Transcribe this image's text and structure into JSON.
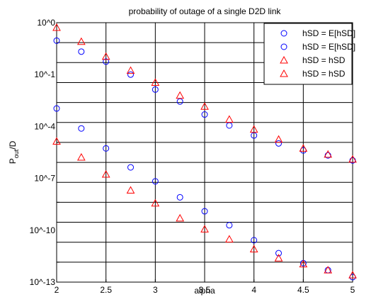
{
  "chart_data": {
    "type": "scatter",
    "title": "probability of outage of a single D2D link",
    "xlabel": "alpha",
    "ylabel_main": "P",
    "ylabel_sub": "out",
    "ylabel_suffix": "/D",
    "xlim": [
      2,
      5
    ],
    "ylim_log10": [
      -13,
      0
    ],
    "y_scale": "log",
    "grid": true,
    "legend_placement": "top-right",
    "x_ticks": [
      2,
      2.5,
      3,
      3.5,
      4,
      4.5,
      5
    ],
    "x_tick_labels": [
      "2",
      "2.5",
      "3",
      "3.5",
      "4",
      "4.5",
      "5"
    ],
    "y_ticks_log10": [
      0,
      -3,
      -6,
      -9,
      -12
    ],
    "y_tick_labels": [
      "10^0",
      "10^-1",
      "10^-4",
      "10^-7",
      "10^-10",
      "10^-13"
    ],
    "y_tick_label_positions_log10": [
      0,
      -2.6,
      -5.2,
      -7.8,
      -10.4,
      -13
    ],
    "x": [
      2,
      2.25,
      2.5,
      2.75,
      3,
      3.25,
      3.5,
      3.75,
      4,
      4.25,
      4.5,
      4.75,
      5
    ],
    "series": [
      {
        "name": "hSD = E[hSD]",
        "marker": "circle",
        "color": "#0000ff",
        "y_log10": [
          -0.9,
          -1.45,
          -1.95,
          -2.6,
          -3.35,
          -3.95,
          -4.6,
          -5.15,
          -5.65,
          -6.05,
          -6.4,
          -6.65,
          -6.9
        ]
      },
      {
        "name": "hSD = E[hSD]",
        "marker": "circle",
        "color": "#0000ff",
        "y_log10": [
          -4.3,
          -5.3,
          -6.3,
          -7.25,
          -7.95,
          -8.75,
          -9.45,
          -10.15,
          -10.9,
          -11.55,
          -12.05,
          -12.4,
          -12.75
        ]
      },
      {
        "name": "hSD = hSD",
        "marker": "triangle",
        "color": "#ff0000",
        "y_log10": [
          -0.25,
          -0.95,
          -1.7,
          -2.4,
          -3.0,
          -3.65,
          -4.2,
          -4.85,
          -5.35,
          -5.85,
          -6.3,
          -6.6,
          -6.85
        ]
      },
      {
        "name": "hSD = hSD",
        "marker": "triangle",
        "color": "#ff0000",
        "y_log10": [
          -5.95,
          -6.75,
          -7.6,
          -8.4,
          -9.05,
          -9.8,
          -10.35,
          -10.85,
          -11.35,
          -11.8,
          -12.1,
          -12.4,
          -12.65
        ]
      }
    ]
  }
}
